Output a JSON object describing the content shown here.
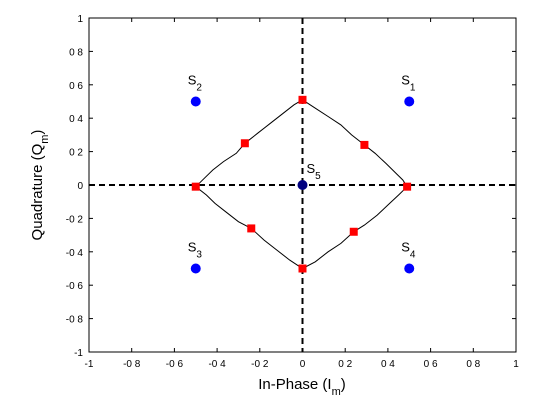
{
  "chart_data": {
    "type": "scatter",
    "xlabel": "In-Phase (I",
    "xlabel_sub": "m",
    "xlabel_suffix": ")",
    "ylabel": "Quadrature (Q",
    "ylabel_sub": "m",
    "ylabel_suffix": ")",
    "xlim": [
      -1,
      1
    ],
    "ylim": [
      -1,
      1
    ],
    "xticks": [
      -1,
      -0.8,
      -0.6,
      -0.4,
      -0.2,
      0,
      0.2,
      0.4,
      0.6,
      0.8,
      1
    ],
    "yticks": [
      -1,
      -0.8,
      -0.6,
      -0.4,
      -0.2,
      0,
      0.2,
      0.4,
      0.6,
      0.8,
      1
    ],
    "xtick_labels": [
      "-1",
      "-0 8",
      "-0 6",
      "-0 4",
      "-0 2",
      "0",
      "0 2",
      "0 4",
      "0 6",
      "0 8",
      "1"
    ],
    "ytick_labels": [
      "-1",
      "-0 8",
      "-0 6",
      "-0 4",
      "-0 2",
      "0",
      "0 2",
      "0 4",
      "0 6",
      "0 8",
      "1"
    ],
    "grid": false,
    "legend": "none",
    "reference_lines": {
      "x": 0,
      "y": 0,
      "style": "dashed"
    },
    "constellation_points": [
      {
        "label": "S",
        "sub": "1",
        "x": 0.5,
        "y": 0.5,
        "label_side": "above"
      },
      {
        "label": "S",
        "sub": "2",
        "x": -0.5,
        "y": 0.5,
        "label_side": "above"
      },
      {
        "label": "S",
        "sub": "3",
        "x": -0.5,
        "y": -0.5,
        "label_side": "above"
      },
      {
        "label": "S",
        "sub": "4",
        "x": 0.5,
        "y": -0.5,
        "label_side": "above"
      },
      {
        "label": "S",
        "sub": "5",
        "x": 0.0,
        "y": 0.0,
        "label_side": "upper-right"
      }
    ],
    "trajectory": [
      [
        0.0,
        0.51
      ],
      [
        0.06,
        0.46
      ],
      [
        0.12,
        0.41
      ],
      [
        0.18,
        0.36
      ],
      [
        0.23,
        0.3
      ],
      [
        0.29,
        0.24
      ],
      [
        0.34,
        0.19
      ],
      [
        0.39,
        0.13
      ],
      [
        0.43,
        0.08
      ],
      [
        0.47,
        0.03
      ],
      [
        0.49,
        -0.01
      ],
      [
        0.45,
        -0.06
      ],
      [
        0.4,
        -0.12
      ],
      [
        0.35,
        -0.18
      ],
      [
        0.29,
        -0.24
      ],
      [
        0.24,
        -0.28
      ],
      [
        0.18,
        -0.35
      ],
      [
        0.12,
        -0.4
      ],
      [
        0.06,
        -0.46
      ],
      [
        0.0,
        -0.5
      ],
      [
        -0.06,
        -0.45
      ],
      [
        -0.12,
        -0.39
      ],
      [
        -0.18,
        -0.33
      ],
      [
        -0.24,
        -0.26
      ],
      [
        -0.3,
        -0.22
      ],
      [
        -0.36,
        -0.16
      ],
      [
        -0.41,
        -0.11
      ],
      [
        -0.45,
        -0.06
      ],
      [
        -0.5,
        -0.01
      ],
      [
        -0.46,
        0.04
      ],
      [
        -0.42,
        0.09
      ],
      [
        -0.37,
        0.14
      ],
      [
        -0.31,
        0.19
      ],
      [
        -0.27,
        0.25
      ],
      [
        -0.21,
        0.31
      ],
      [
        -0.15,
        0.37
      ],
      [
        -0.09,
        0.43
      ],
      [
        -0.04,
        0.48
      ],
      [
        0.0,
        0.51
      ]
    ],
    "trajectory_markers": [
      {
        "x": 0.0,
        "y": 0.51
      },
      {
        "x": 0.29,
        "y": 0.24
      },
      {
        "x": 0.49,
        "y": -0.01
      },
      {
        "x": 0.24,
        "y": -0.28
      },
      {
        "x": 0.0,
        "y": -0.5
      },
      {
        "x": -0.24,
        "y": -0.26
      },
      {
        "x": -0.5,
        "y": -0.01
      },
      {
        "x": -0.27,
        "y": 0.25
      }
    ],
    "colors": {
      "constellation": "#0000ff",
      "center_point": "#000080",
      "markers": "#ff0000",
      "trajectory": "#000000",
      "reference": "#000000"
    }
  }
}
